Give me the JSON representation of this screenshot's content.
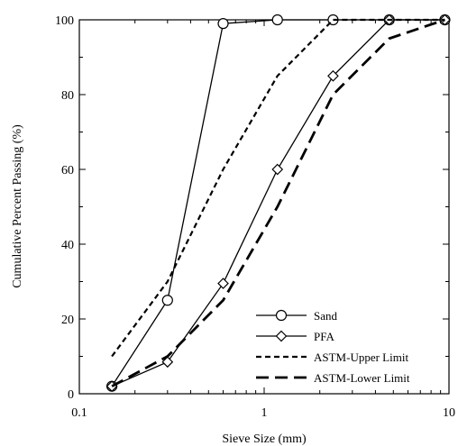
{
  "chart_data": {
    "type": "line",
    "xlabel": "Sieve Size (mm)",
    "ylabel": "Cumulative Percent Passing (%)",
    "xscale": "log",
    "xlim": [
      0.1,
      10
    ],
    "ylim": [
      0,
      100
    ],
    "xticks": [
      {
        "value": 0.1,
        "label": "0.1"
      },
      {
        "value": 1,
        "label": "1"
      },
      {
        "value": 10,
        "label": "10"
      }
    ],
    "yticks": [
      {
        "value": 0,
        "label": "0"
      },
      {
        "value": 20,
        "label": "20"
      },
      {
        "value": 40,
        "label": "40"
      },
      {
        "value": 60,
        "label": "60"
      },
      {
        "value": 80,
        "label": "80"
      },
      {
        "value": 100,
        "label": "100"
      }
    ],
    "grid": false,
    "legend_position": "bottom-right",
    "series": [
      {
        "name": "Sand",
        "marker": "circle",
        "dash": "solid",
        "x": [
          0.15,
          0.3,
          0.6,
          1.18,
          2.36,
          4.75,
          9.5
        ],
        "y": [
          2,
          25,
          99,
          100,
          100,
          100,
          100
        ]
      },
      {
        "name": "PFA",
        "marker": "diamond",
        "dash": "solid",
        "x": [
          0.15,
          0.3,
          0.6,
          1.18,
          2.36,
          4.75,
          9.5
        ],
        "y": [
          2,
          8.5,
          29.5,
          60,
          85,
          100,
          100
        ]
      },
      {
        "name": "ASTM-Upper Limit",
        "marker": "none",
        "dash": "short",
        "x": [
          0.15,
          0.3,
          0.6,
          1.18,
          2.36,
          4.75,
          9.5
        ],
        "y": [
          10,
          30,
          60,
          85,
          100,
          100,
          100
        ]
      },
      {
        "name": "ASTM-Lower Limit",
        "marker": "none",
        "dash": "long",
        "x": [
          0.15,
          0.3,
          0.6,
          1.18,
          2.36,
          4.75,
          9.5
        ],
        "y": [
          2,
          10,
          25,
          50,
          80,
          95,
          100
        ]
      }
    ]
  }
}
